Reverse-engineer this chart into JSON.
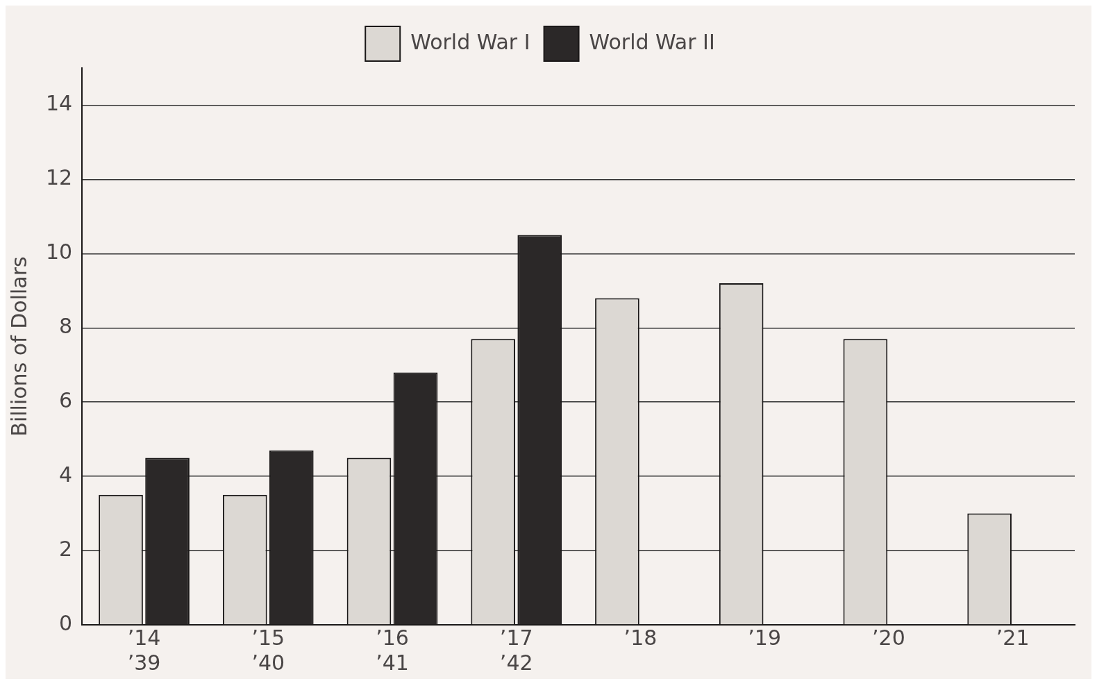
{
  "chart_data": {
    "type": "bar",
    "ylabel": "Billions of Dollars",
    "categories": [
      "’14\n’39",
      "’15\n’40",
      "’16\n’41",
      "’17\n’42",
      "’18",
      "’19",
      "’20",
      "’21"
    ],
    "series": [
      {
        "name": "World War I",
        "color": "#dcd8d3",
        "values": [
          3.5,
          3.5,
          4.5,
          7.7,
          8.8,
          9.2,
          7.7,
          3.0
        ]
      },
      {
        "name": "World War II",
        "color": "#2b2828",
        "values": [
          4.5,
          4.7,
          6.8,
          10.5,
          null,
          null,
          null,
          null
        ]
      }
    ],
    "ylim": [
      0,
      15
    ],
    "yticks": [
      0,
      2,
      4,
      6,
      8,
      10,
      12,
      14
    ],
    "grid": "y",
    "legend": "top"
  }
}
